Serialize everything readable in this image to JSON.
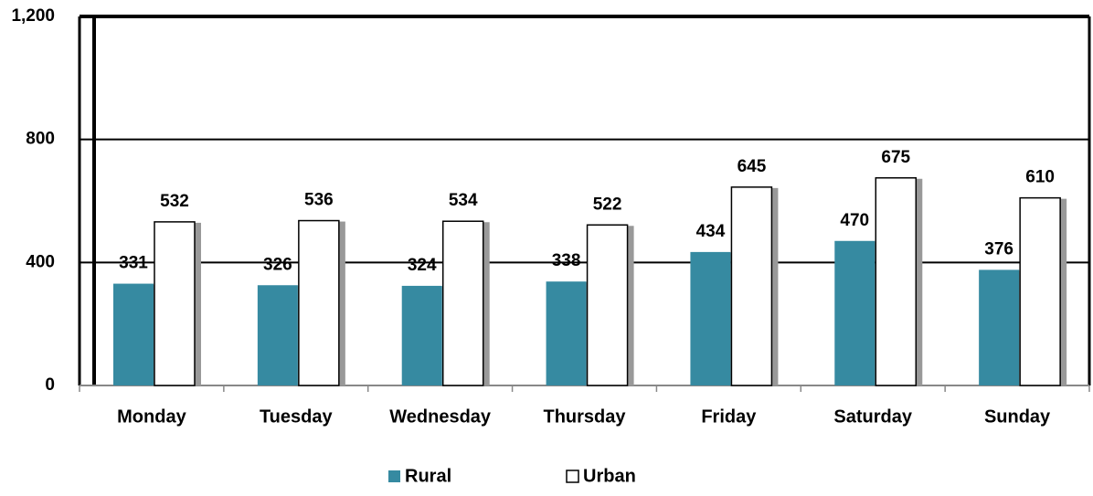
{
  "chart_data": {
    "type": "bar",
    "categories": [
      "Monday",
      "Tuesday",
      "Wednesday",
      "Thursday",
      "Friday",
      "Saturday",
      "Sunday"
    ],
    "series": [
      {
        "name": "Rural",
        "color": "#368aa1",
        "values": [
          331,
          326,
          324,
          338,
          434,
          470,
          376
        ]
      },
      {
        "name": "Urban",
        "color": "#ffffff",
        "values": [
          532,
          536,
          534,
          522,
          645,
          675,
          610
        ]
      }
    ],
    "ylim": [
      0,
      1200
    ],
    "yticks": [
      0,
      400,
      800,
      {
        "value": 1200,
        "label": "1,200"
      }
    ],
    "grid": true,
    "legend": "bottom"
  }
}
